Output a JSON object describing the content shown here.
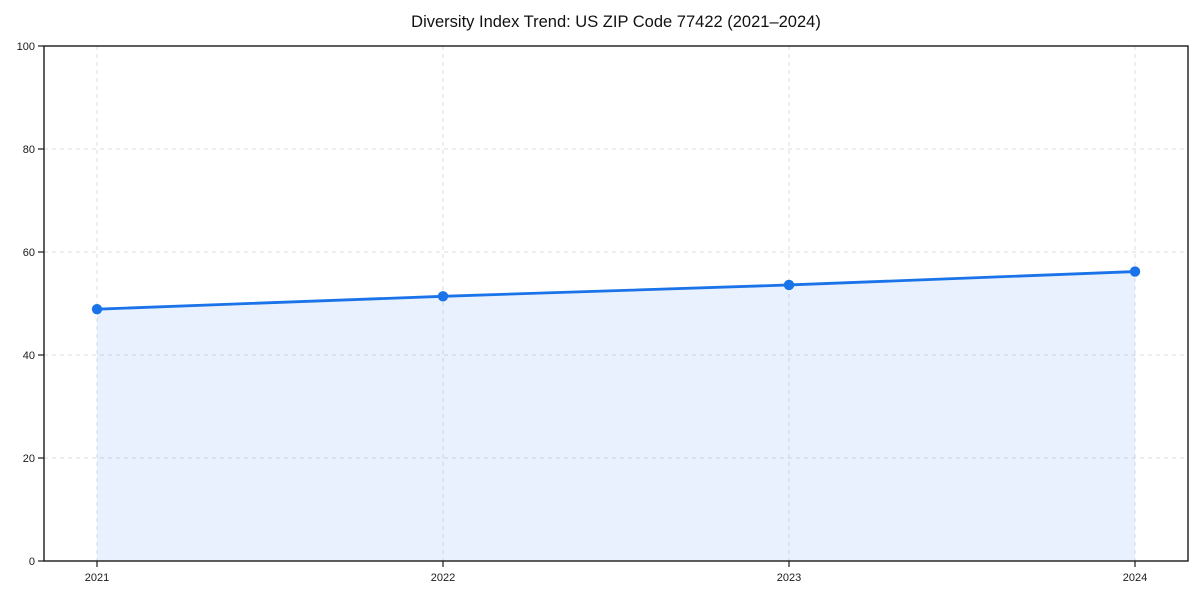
{
  "title": "Diversity Index Trend: US ZIP Code 77422 (2021–2024)",
  "chart_data": {
    "type": "area",
    "title": "Diversity Index Trend: US ZIP Code 77422 (2021–2024)",
    "categories": [
      "2021",
      "2022",
      "2023",
      "2024"
    ],
    "values": [
      48.9,
      51.4,
      53.6,
      56.2
    ],
    "xlabel": "",
    "ylabel": "",
    "ylim": [
      0,
      100
    ],
    "yticks": [
      0,
      20,
      40,
      60,
      80,
      100
    ],
    "grid": "dashed-both-axes",
    "legend": "none",
    "line_color": "#1a73e8",
    "fill_color": "rgba(26,115,232,0.10)",
    "marker_color": "#1a73e8",
    "grid_color": "#dcdcdc",
    "spine_color": "#1a1a1a",
    "tick_label_color": "#1a1a1a",
    "background_color": "#ffffff"
  }
}
